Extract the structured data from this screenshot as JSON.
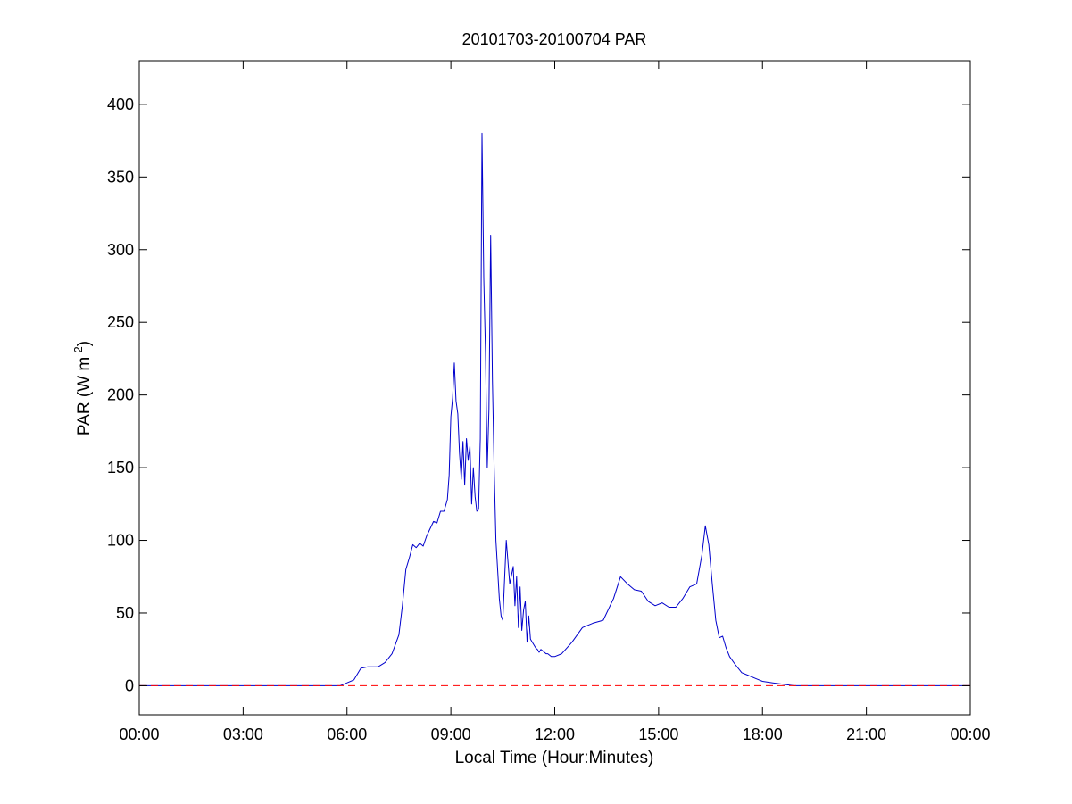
{
  "chart_data": {
    "type": "line",
    "title": "20101703-20100704 PAR",
    "xlabel": "Local Time (Hour:Minutes)",
    "ylabel": "PAR (W m",
    "ylabel_sup": "-2",
    "ylabel_close": ")",
    "xlim": [
      0,
      24
    ],
    "ylim": [
      -20,
      430
    ],
    "x_ticks": [
      {
        "value": 0,
        "label": "00:00"
      },
      {
        "value": 3,
        "label": "03:00"
      },
      {
        "value": 6,
        "label": "06:00"
      },
      {
        "value": 9,
        "label": "09:00"
      },
      {
        "value": 12,
        "label": "12:00"
      },
      {
        "value": 15,
        "label": "15:00"
      },
      {
        "value": 18,
        "label": "18:00"
      },
      {
        "value": 21,
        "label": "21:00"
      },
      {
        "value": 24,
        "label": "00:00"
      }
    ],
    "y_ticks": [
      {
        "value": 0,
        "label": "0"
      },
      {
        "value": 50,
        "label": "50"
      },
      {
        "value": 100,
        "label": "100"
      },
      {
        "value": 150,
        "label": "150"
      },
      {
        "value": 200,
        "label": "200"
      },
      {
        "value": 250,
        "label": "250"
      },
      {
        "value": 300,
        "label": "300"
      },
      {
        "value": 350,
        "label": "350"
      },
      {
        "value": 400,
        "label": "400"
      }
    ],
    "grid": false,
    "series": [
      {
        "color": "#0000cc",
        "style": "solid",
        "x": [
          0,
          5.0,
          5.5,
          5.8,
          6.0,
          6.2,
          6.3,
          6.4,
          6.6,
          6.9,
          7.1,
          7.3,
          7.5,
          7.6,
          7.7,
          7.8,
          7.9,
          8.0,
          8.1,
          8.2,
          8.3,
          8.5,
          8.6,
          8.7,
          8.8,
          8.9,
          8.95,
          9.0,
          9.05,
          9.1,
          9.15,
          9.2,
          9.25,
          9.3,
          9.35,
          9.4,
          9.45,
          9.5,
          9.55,
          9.6,
          9.65,
          9.7,
          9.75,
          9.8,
          9.85,
          9.9,
          9.95,
          10.0,
          10.05,
          10.1,
          10.15,
          10.2,
          10.25,
          10.3,
          10.35,
          10.4,
          10.45,
          10.5,
          10.6,
          10.7,
          10.8,
          10.85,
          10.9,
          10.95,
          11.0,
          11.05,
          11.1,
          11.15,
          11.2,
          11.25,
          11.3,
          11.35,
          11.4,
          11.45,
          11.5,
          11.55,
          11.6,
          11.65,
          11.7,
          11.75,
          11.8,
          11.9,
          12.0,
          12.2,
          12.5,
          12.8,
          13.1,
          13.4,
          13.7,
          13.9,
          14.1,
          14.3,
          14.5,
          14.7,
          14.9,
          15.1,
          15.3,
          15.5,
          15.7,
          15.9,
          16.1,
          16.25,
          16.35,
          16.45,
          16.55,
          16.65,
          16.75,
          16.85,
          16.95,
          17.05,
          17.2,
          17.4,
          17.6,
          17.8,
          18.0,
          18.3,
          18.6,
          18.9,
          19.2,
          20.0,
          24.0
        ],
        "y": [
          0,
          0,
          0,
          0,
          2,
          4,
          8,
          12,
          13,
          13,
          16,
          22,
          35,
          55,
          80,
          88,
          97,
          95,
          98,
          96,
          103,
          113,
          112,
          120,
          120,
          128,
          145,
          185,
          198,
          222,
          196,
          187,
          160,
          142,
          168,
          138,
          170,
          155,
          165,
          125,
          150,
          130,
          120,
          122,
          170,
          380,
          280,
          230,
          150,
          190,
          310,
          210,
          150,
          100,
          80,
          60,
          48,
          45,
          100,
          70,
          82,
          55,
          75,
          40,
          68,
          38,
          52,
          58,
          30,
          48,
          32,
          30,
          28,
          26,
          25,
          23,
          25,
          24,
          23,
          22,
          22,
          20,
          20,
          22,
          30,
          40,
          43,
          45,
          60,
          75,
          70,
          66,
          65,
          58,
          55,
          57,
          54,
          54,
          60,
          68,
          70,
          90,
          110,
          97,
          70,
          45,
          33,
          34,
          26,
          20,
          15,
          9,
          7,
          5,
          3,
          2,
          1,
          0,
          0,
          0,
          0
        ]
      },
      {
        "color": "#ff0000",
        "style": "dashed",
        "x": [
          0,
          24
        ],
        "y": [
          0,
          0
        ]
      }
    ]
  }
}
